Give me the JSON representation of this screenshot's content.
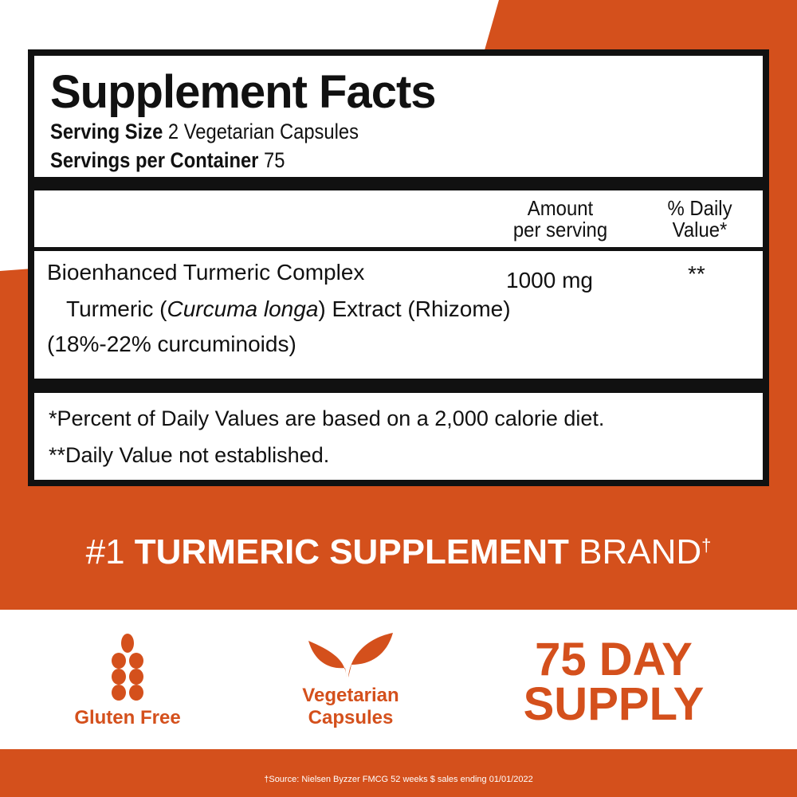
{
  "colors": {
    "brand_orange": "#d4501c",
    "panel_black": "#111111"
  },
  "facts": {
    "title": "Supplement Facts",
    "serving_size_label": "Serving Size",
    "serving_size_value": "2 Vegetarian Capsules",
    "servings_label": "Servings per Container",
    "servings_value": "75",
    "col_amount_1": "Amount",
    "col_amount_2": "per serving",
    "col_dv_1": "% Daily",
    "col_dv_2": "Value*",
    "ingredient": "Bioenhanced Turmeric Complex",
    "amount": "1000 mg",
    "dv": "**",
    "sub_1": "Turmeric (",
    "sub_italic": "Curcuma longa",
    "sub_2": ") Extract (Rhizome)",
    "sub_line2": "(18%-22% curcuminoids)",
    "footnote_1": "*Percent of Daily Values are based on a 2,000 calorie diet.",
    "footnote_2": "**Daily Value not established."
  },
  "brand": {
    "prefix": "#1 ",
    "bold": "TURMERIC SUPPLEMENT",
    "suffix": " BRAND",
    "mark": "†"
  },
  "badges": [
    {
      "icon": "wheat-icon",
      "label": "Gluten Free"
    },
    {
      "icon": "leaf-sprout-icon",
      "label_1": "Vegetarian",
      "label_2": "Capsules"
    }
  ],
  "supply": {
    "line1": "75 DAY",
    "line2": "SUPPLY"
  },
  "source": "†Source: Nielsen Byzzer FMCG 52 weeks $ sales ending 01/01/2022"
}
